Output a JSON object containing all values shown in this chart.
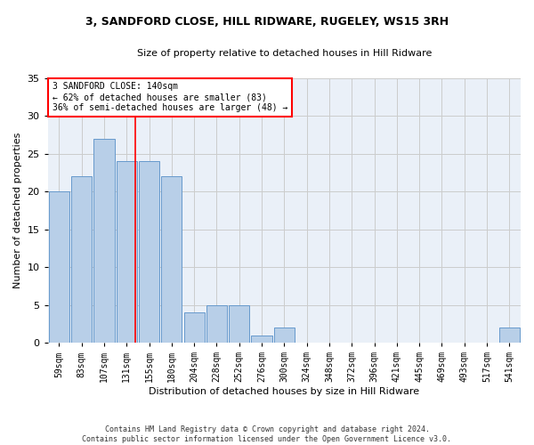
{
  "title": "3, SANDFORD CLOSE, HILL RIDWARE, RUGELEY, WS15 3RH",
  "subtitle": "Size of property relative to detached houses in Hill Ridware",
  "xlabel": "Distribution of detached houses by size in Hill Ridware",
  "ylabel": "Number of detached properties",
  "bar_values": [
    20,
    22,
    27,
    24,
    24,
    22,
    4,
    5,
    5,
    1,
    2,
    0,
    0,
    0,
    0,
    0,
    0,
    0,
    0,
    0,
    2
  ],
  "bin_labels": [
    "59sqm",
    "83sqm",
    "107sqm",
    "131sqm",
    "155sqm",
    "180sqm",
    "204sqm",
    "228sqm",
    "252sqm",
    "276sqm",
    "300sqm",
    "324sqm",
    "348sqm",
    "372sqm",
    "396sqm",
    "421sqm",
    "445sqm",
    "469sqm",
    "493sqm",
    "517sqm",
    "541sqm"
  ],
  "bar_color": "#b8cfe8",
  "bar_edge_color": "#6699cc",
  "vline_color": "red",
  "vline_x": 3.38,
  "annotation_lines": [
    "3 SANDFORD CLOSE: 140sqm",
    "← 62% of detached houses are smaller (83)",
    "36% of semi-detached houses are larger (48) →"
  ],
  "ylim": [
    0,
    35
  ],
  "yticks": [
    0,
    5,
    10,
    15,
    20,
    25,
    30,
    35
  ],
  "grid_color": "#cccccc",
  "bg_color": "#eaf0f8",
  "footer_line1": "Contains HM Land Registry data © Crown copyright and database right 2024.",
  "footer_line2": "Contains public sector information licensed under the Open Government Licence v3.0."
}
